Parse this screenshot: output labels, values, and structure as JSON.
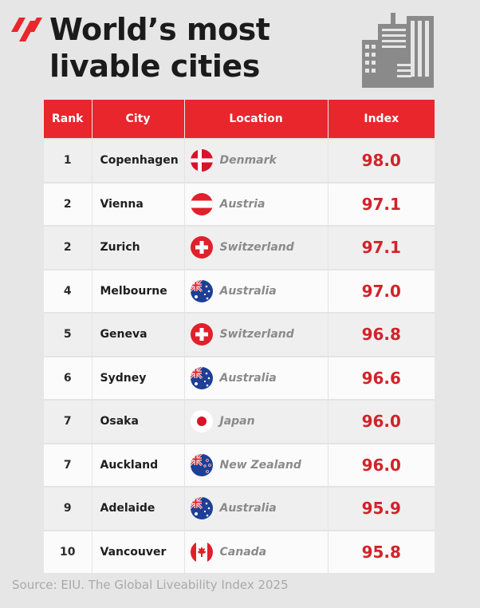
{
  "header": {
    "title_line1": "World’s most",
    "title_line2": "livable cities"
  },
  "colors": {
    "accent": "#e8262c",
    "index_text": "#d1232a",
    "country_text": "#8a8a8a",
    "source_text": "#a9a9a9"
  },
  "icons": {
    "logo": "sbs-logo-icon",
    "header": "city-buildings-icon"
  },
  "chart_data": {
    "type": "table",
    "columns": [
      "Rank",
      "City",
      "Location",
      "Index"
    ],
    "rows": [
      {
        "rank": "1",
        "city": "Copenhagen",
        "location": "Denmark",
        "flag": "denmark-flag-icon",
        "index": "98.0"
      },
      {
        "rank": "2",
        "city": "Vienna",
        "location": "Austria",
        "flag": "austria-flag-icon",
        "index": "97.1"
      },
      {
        "rank": "2",
        "city": "Zurich",
        "location": "Switzerland",
        "flag": "switzerland-flag-icon",
        "index": "97.1"
      },
      {
        "rank": "4",
        "city": "Melbourne",
        "location": "Australia",
        "flag": "australia-flag-icon",
        "index": "97.0"
      },
      {
        "rank": "5",
        "city": "Geneva",
        "location": "Switzerland",
        "flag": "switzerland-flag-icon",
        "index": "96.8"
      },
      {
        "rank": "6",
        "city": "Sydney",
        "location": "Australia",
        "flag": "australia-flag-icon",
        "index": "96.6"
      },
      {
        "rank": "7",
        "city": "Osaka",
        "location": "Japan",
        "flag": "japan-flag-icon",
        "index": "96.0"
      },
      {
        "rank": "7",
        "city": "Auckland",
        "location": "New Zealand",
        "flag": "new-zealand-flag-icon",
        "index": "96.0"
      },
      {
        "rank": "9",
        "city": "Adelaide",
        "location": "Australia",
        "flag": "australia-flag-icon",
        "index": "95.9"
      },
      {
        "rank": "10",
        "city": "Vancouver",
        "location": "Canada",
        "flag": "canada-flag-icon",
        "index": "95.8"
      }
    ]
  },
  "footer": {
    "source": "Source: EIU. The Global Liveability Index 2025"
  }
}
